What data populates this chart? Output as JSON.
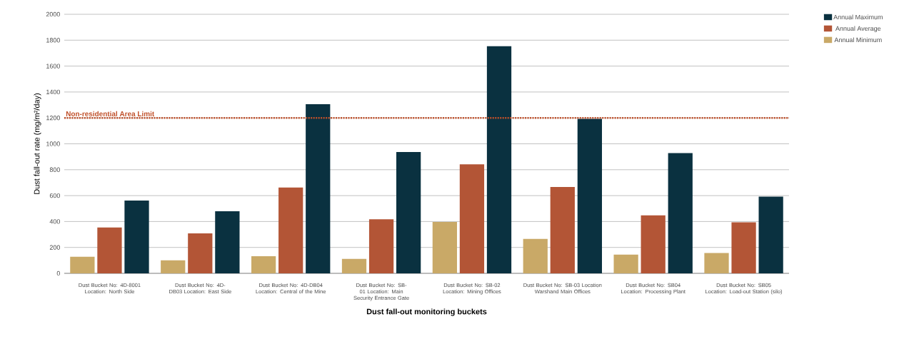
{
  "chart_data": {
    "type": "bar",
    "xlabel": "Dust fall-out monitoring buckets",
    "ylabel": "Dust fall-out rate (mg/m²/day)",
    "categories": [
      "Dust Bucket No: 4D-8001 Location:  North Side",
      "Dust Bucket No: 4D-DB03 Location:  East Side",
      "Dust Bucket No: 4D-DB04 Location: Central of the Mine",
      "Dust Bucket No: SB-01 Location: Main Security Entrance Gate",
      "Dust Bucket No: SB-02 Location: Mining Offices",
      "Dust Bucket No: SB-03 Location Warshand Main Offices",
      "Dust Bucket No: SB04 Location: Processing Plant",
      "Dust Bucket No: SB05 Location: Load-out Station (silo)"
    ],
    "series": [
      {
        "name": "Annual Minimum",
        "color": "#c9a967",
        "values": [
          128,
          100,
          132,
          112,
          397,
          266,
          145,
          157
        ]
      },
      {
        "name": "Annual Average",
        "color": "#b35536",
        "values": [
          354,
          308,
          662,
          418,
          842,
          667,
          447,
          394
        ]
      },
      {
        "name": "Annual Maximum",
        "color": "#0a3140",
        "values": [
          562,
          479,
          1306,
          936,
          1754,
          1193,
          928,
          592
        ]
      }
    ],
    "ylim": [
      0,
      2000
    ],
    "yticks": [
      0,
      200,
      400,
      600,
      800,
      1000,
      1200,
      1400,
      1600,
      1800,
      2000
    ],
    "grid": "y",
    "legend": "right",
    "ref_lines": [
      {
        "axis": "y",
        "value": 1200,
        "label": "Non-residential Area Limit",
        "color": "#c0502a",
        "line_style": "dotted"
      }
    ]
  }
}
